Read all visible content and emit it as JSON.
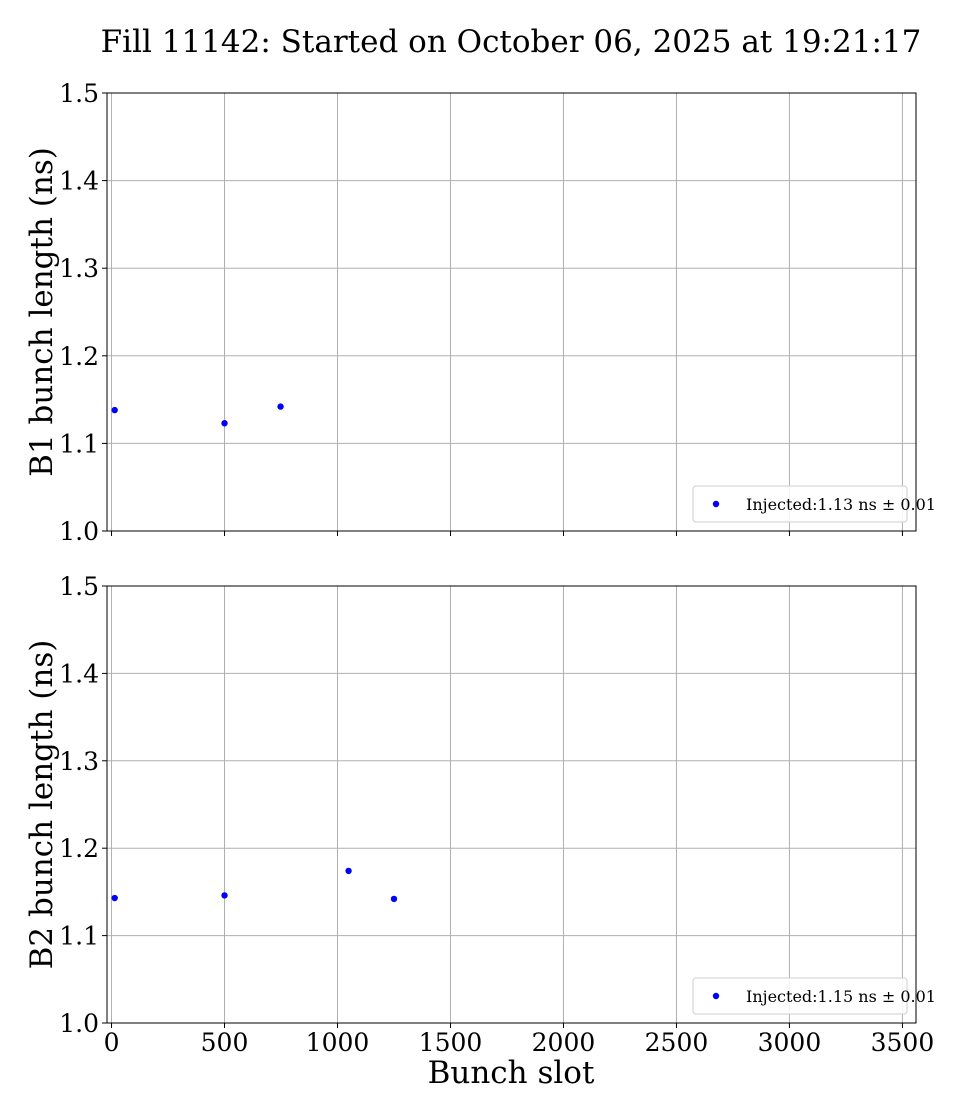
{
  "chart_data": {
    "type": "scatter",
    "title": "Fill 11142: Started on October 06, 2025 at 19:21:17",
    "xlabel": "Bunch slot",
    "xlim": [
      -20,
      3560
    ],
    "xticks": [
      0,
      500,
      1000,
      1500,
      2000,
      2500,
      3000,
      3500
    ],
    "xtick_labels": [
      "0",
      "500",
      "1000",
      "1500",
      "2000",
      "2500",
      "3000",
      "3500"
    ],
    "grid": true,
    "panels": [
      {
        "ylabel": "B1 bunch length (ns)",
        "ylim": [
          1.0,
          1.5
        ],
        "yticks": [
          1.0,
          1.1,
          1.2,
          1.3,
          1.4,
          1.5
        ],
        "ytick_labels": [
          "1.0",
          "1.1",
          "1.2",
          "1.3",
          "1.4",
          "1.5"
        ],
        "show_xtick_labels": false,
        "legend_position": "lower right",
        "series": [
          {
            "name": "Injected:1.13 ns ± 0.01",
            "color": "#0000ff",
            "marker": "circle",
            "x": [
              14,
              500,
              748
            ],
            "y": [
              1.138,
              1.123,
              1.142
            ]
          }
        ]
      },
      {
        "ylabel": "B2 bunch length (ns)",
        "ylim": [
          1.0,
          1.5
        ],
        "yticks": [
          1.0,
          1.1,
          1.2,
          1.3,
          1.4,
          1.5
        ],
        "ytick_labels": [
          "1.0",
          "1.1",
          "1.2",
          "1.3",
          "1.4",
          "1.5"
        ],
        "show_xtick_labels": true,
        "legend_position": "lower right",
        "series": [
          {
            "name": "Injected:1.15 ns ± 0.01",
            "color": "#0000ff",
            "marker": "circle",
            "x": [
              14,
              500,
              1049,
              1250
            ],
            "y": [
              1.143,
              1.146,
              1.174,
              1.142
            ]
          }
        ]
      }
    ]
  }
}
